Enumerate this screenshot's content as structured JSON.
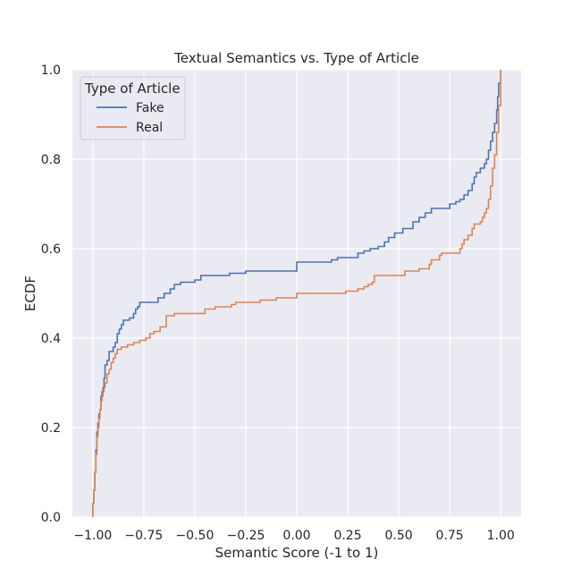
{
  "chart_data": {
    "type": "line",
    "title": "Textual Semantics vs. Type of Article",
    "xlabel": "Semantic Score (-1 to 1)",
    "ylabel": "ECDF",
    "xlim": [
      -1.1,
      1.1
    ],
    "ylim": [
      0.0,
      1.0
    ],
    "xticks": [
      -1.0,
      -0.75,
      -0.5,
      -0.25,
      0.0,
      0.25,
      0.5,
      0.75,
      1.0
    ],
    "xtick_labels": [
      "−1.00",
      "−0.75",
      "−0.50",
      "−0.25",
      "0.00",
      "0.25",
      "0.50",
      "0.75",
      "1.00"
    ],
    "yticks": [
      0.0,
      0.2,
      0.4,
      0.6,
      0.8,
      1.0
    ],
    "ytick_labels": [
      "0.0",
      "0.2",
      "0.4",
      "0.6",
      "0.8",
      "1.0"
    ],
    "grid": true,
    "legend": {
      "title": "Type of Article",
      "placement": "top-left"
    },
    "series": [
      {
        "name": "Fake",
        "color": "#4c72b0",
        "points": [
          [
            -1.0,
            0.0
          ],
          [
            -1.0,
            0.03
          ],
          [
            -0.995,
            0.06
          ],
          [
            -0.99,
            0.1
          ],
          [
            -0.985,
            0.15
          ],
          [
            -0.98,
            0.19
          ],
          [
            -0.975,
            0.21
          ],
          [
            -0.97,
            0.23
          ],
          [
            -0.965,
            0.24
          ],
          [
            -0.96,
            0.27
          ],
          [
            -0.955,
            0.28
          ],
          [
            -0.95,
            0.29
          ],
          [
            -0.945,
            0.31
          ],
          [
            -0.94,
            0.34
          ],
          [
            -0.93,
            0.35
          ],
          [
            -0.92,
            0.37
          ],
          [
            -0.9,
            0.38
          ],
          [
            -0.89,
            0.39
          ],
          [
            -0.88,
            0.41
          ],
          [
            -0.87,
            0.42
          ],
          [
            -0.86,
            0.43
          ],
          [
            -0.85,
            0.44
          ],
          [
            -0.82,
            0.445
          ],
          [
            -0.8,
            0.455
          ],
          [
            -0.79,
            0.465
          ],
          [
            -0.78,
            0.47
          ],
          [
            -0.77,
            0.48
          ],
          [
            -0.7,
            0.48
          ],
          [
            -0.68,
            0.49
          ],
          [
            -0.65,
            0.5
          ],
          [
            -0.62,
            0.51
          ],
          [
            -0.6,
            0.52
          ],
          [
            -0.57,
            0.525
          ],
          [
            -0.5,
            0.53
          ],
          [
            -0.47,
            0.54
          ],
          [
            -0.35,
            0.54
          ],
          [
            -0.33,
            0.545
          ],
          [
            -0.25,
            0.55
          ],
          [
            0.0,
            0.55
          ],
          [
            0.0,
            0.57
          ],
          [
            0.15,
            0.57
          ],
          [
            0.17,
            0.575
          ],
          [
            0.2,
            0.58
          ],
          [
            0.3,
            0.59
          ],
          [
            0.33,
            0.595
          ],
          [
            0.36,
            0.6
          ],
          [
            0.4,
            0.605
          ],
          [
            0.43,
            0.615
          ],
          [
            0.45,
            0.625
          ],
          [
            0.48,
            0.635
          ],
          [
            0.52,
            0.645
          ],
          [
            0.57,
            0.66
          ],
          [
            0.6,
            0.67
          ],
          [
            0.63,
            0.68
          ],
          [
            0.66,
            0.69
          ],
          [
            0.73,
            0.69
          ],
          [
            0.75,
            0.7
          ],
          [
            0.78,
            0.705
          ],
          [
            0.8,
            0.71
          ],
          [
            0.82,
            0.72
          ],
          [
            0.84,
            0.73
          ],
          [
            0.86,
            0.745
          ],
          [
            0.87,
            0.76
          ],
          [
            0.88,
            0.77
          ],
          [
            0.9,
            0.78
          ],
          [
            0.92,
            0.79
          ],
          [
            0.93,
            0.8
          ],
          [
            0.94,
            0.82
          ],
          [
            0.95,
            0.84
          ],
          [
            0.96,
            0.86
          ],
          [
            0.97,
            0.88
          ],
          [
            0.98,
            0.91
          ],
          [
            0.985,
            0.94
          ],
          [
            0.99,
            0.97
          ],
          [
            1.0,
            1.0
          ]
        ]
      },
      {
        "name": "Real",
        "color": "#dd8452",
        "points": [
          [
            -1.0,
            0.0
          ],
          [
            -1.0,
            0.03
          ],
          [
            -0.995,
            0.06
          ],
          [
            -0.99,
            0.1
          ],
          [
            -0.985,
            0.14
          ],
          [
            -0.98,
            0.18
          ],
          [
            -0.975,
            0.2
          ],
          [
            -0.97,
            0.22
          ],
          [
            -0.965,
            0.24
          ],
          [
            -0.96,
            0.26
          ],
          [
            -0.955,
            0.27
          ],
          [
            -0.95,
            0.28
          ],
          [
            -0.945,
            0.29
          ],
          [
            -0.94,
            0.3
          ],
          [
            -0.93,
            0.32
          ],
          [
            -0.92,
            0.33
          ],
          [
            -0.91,
            0.345
          ],
          [
            -0.9,
            0.355
          ],
          [
            -0.89,
            0.365
          ],
          [
            -0.88,
            0.375
          ],
          [
            -0.86,
            0.38
          ],
          [
            -0.83,
            0.385
          ],
          [
            -0.8,
            0.39
          ],
          [
            -0.77,
            0.395
          ],
          [
            -0.74,
            0.4
          ],
          [
            -0.72,
            0.41
          ],
          [
            -0.7,
            0.415
          ],
          [
            -0.67,
            0.425
          ],
          [
            -0.64,
            0.43
          ],
          [
            -0.64,
            0.45
          ],
          [
            -0.6,
            0.455
          ],
          [
            -0.45,
            0.455
          ],
          [
            -0.45,
            0.465
          ],
          [
            -0.4,
            0.47
          ],
          [
            -0.32,
            0.475
          ],
          [
            -0.3,
            0.48
          ],
          [
            -0.18,
            0.48
          ],
          [
            -0.18,
            0.485
          ],
          [
            -0.1,
            0.49
          ],
          [
            0.0,
            0.49
          ],
          [
            0.0,
            0.5
          ],
          [
            0.22,
            0.5
          ],
          [
            0.24,
            0.505
          ],
          [
            0.3,
            0.51
          ],
          [
            0.33,
            0.515
          ],
          [
            0.35,
            0.52
          ],
          [
            0.37,
            0.525
          ],
          [
            0.38,
            0.54
          ],
          [
            0.52,
            0.54
          ],
          [
            0.53,
            0.55
          ],
          [
            0.6,
            0.555
          ],
          [
            0.65,
            0.565
          ],
          [
            0.66,
            0.575
          ],
          [
            0.7,
            0.585
          ],
          [
            0.71,
            0.59
          ],
          [
            0.78,
            0.59
          ],
          [
            0.8,
            0.6
          ],
          [
            0.81,
            0.61
          ],
          [
            0.82,
            0.62
          ],
          [
            0.84,
            0.63
          ],
          [
            0.86,
            0.645
          ],
          [
            0.87,
            0.655
          ],
          [
            0.9,
            0.66
          ],
          [
            0.91,
            0.67
          ],
          [
            0.92,
            0.68
          ],
          [
            0.93,
            0.69
          ],
          [
            0.94,
            0.71
          ],
          [
            0.95,
            0.74
          ],
          [
            0.96,
            0.78
          ],
          [
            0.97,
            0.81
          ],
          [
            0.98,
            0.86
          ],
          [
            0.99,
            0.92
          ],
          [
            1.0,
            0.97
          ],
          [
            1.0,
            1.0
          ]
        ]
      }
    ]
  }
}
